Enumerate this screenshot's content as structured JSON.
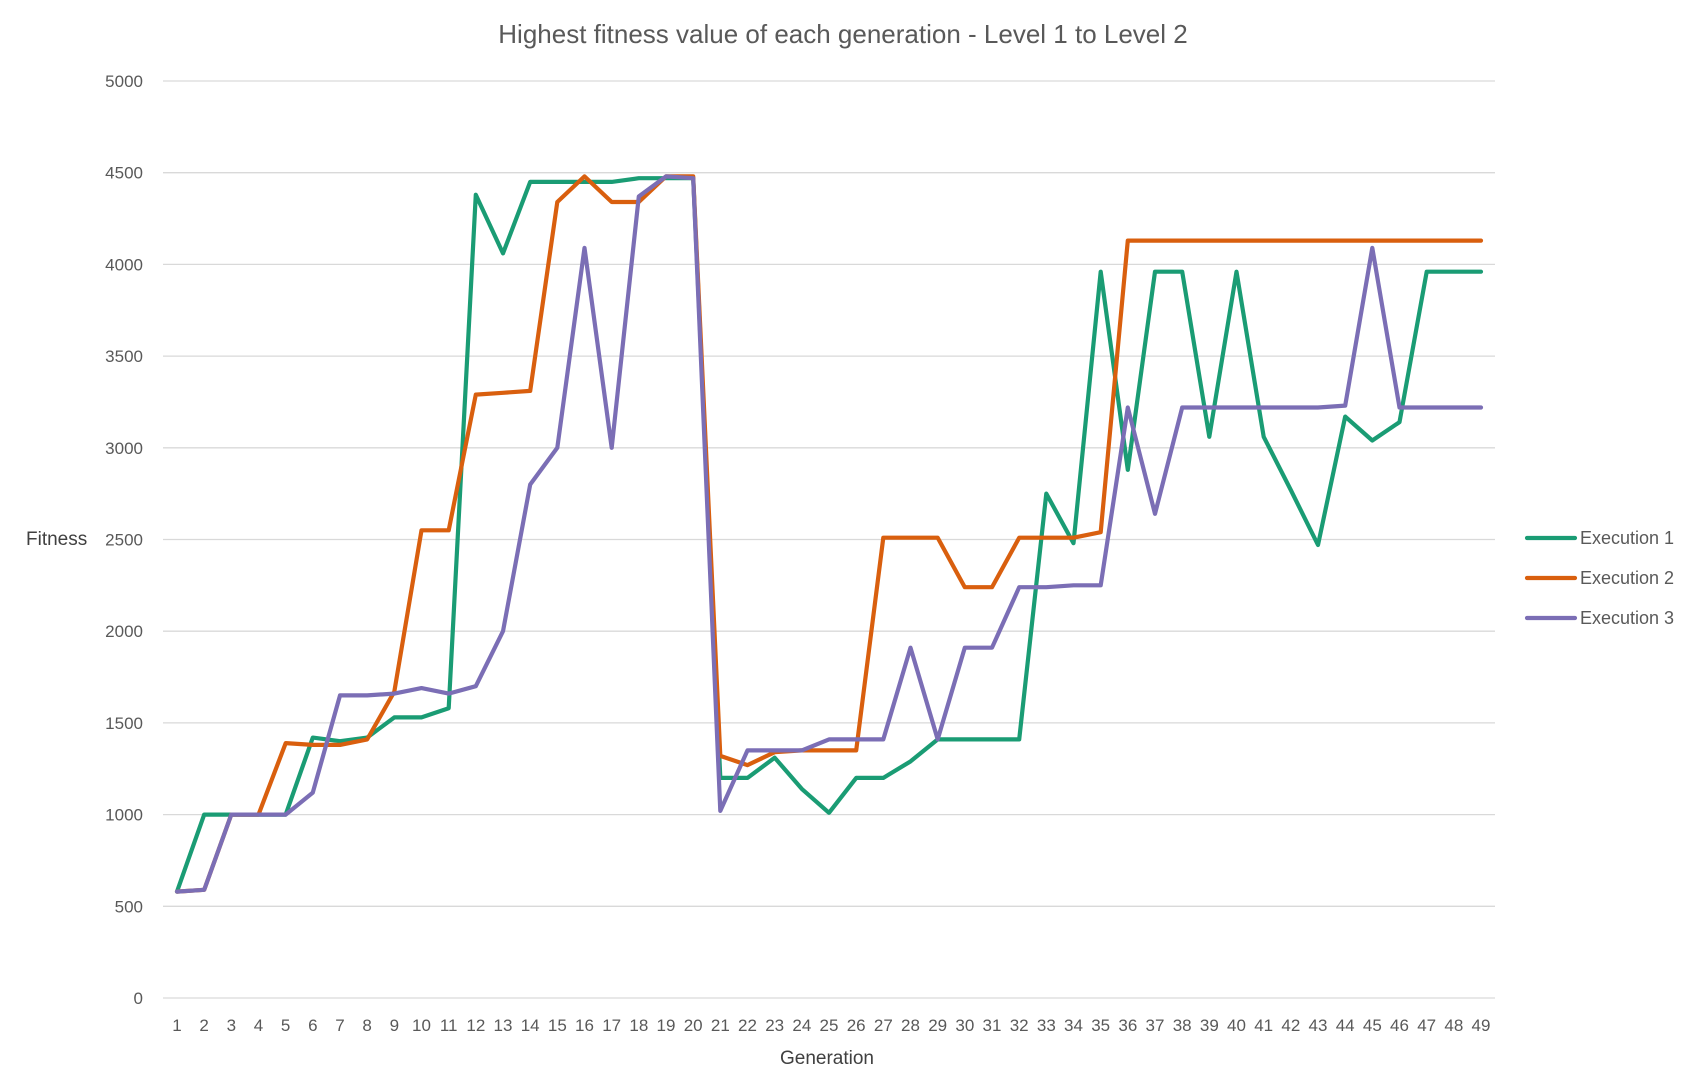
{
  "chart_data": {
    "type": "line",
    "title": "Highest fitness value of each generation - Level 1 to Level 2",
    "xlabel": "Generation",
    "ylabel": "Fitness",
    "ylim": [
      0,
      5000
    ],
    "yticks": [
      0,
      500,
      1000,
      1500,
      2000,
      2500,
      3000,
      3500,
      4000,
      4500,
      5000
    ],
    "grid": true,
    "legend_position": "right",
    "x": [
      1,
      2,
      3,
      4,
      5,
      6,
      7,
      8,
      9,
      10,
      11,
      12,
      13,
      14,
      15,
      16,
      17,
      18,
      19,
      20,
      21,
      22,
      23,
      24,
      25,
      26,
      27,
      28,
      29,
      30,
      31,
      32,
      33,
      34,
      35,
      36,
      37,
      38,
      39,
      40,
      41,
      42,
      43,
      44,
      45,
      46,
      47,
      48,
      49
    ],
    "series": [
      {
        "name": "Execution 1",
        "color": "#1a9c74",
        "values": [
          580,
          1000,
          1000,
          1000,
          1000,
          1420,
          1400,
          1420,
          1530,
          1530,
          1580,
          4380,
          4060,
          4450,
          4450,
          4450,
          4450,
          4470,
          4470,
          4470,
          1200,
          1200,
          1310,
          1140,
          1010,
          1200,
          1200,
          1290,
          1410,
          1410,
          1410,
          1410,
          2750,
          2480,
          3960,
          2880,
          3960,
          3960,
          3060,
          3960,
          3060,
          2770,
          2470,
          3170,
          3040,
          3140,
          3960,
          3960,
          3960
        ]
      },
      {
        "name": "Execution 2",
        "color": "#d95f0e",
        "values": [
          580,
          590,
          1000,
          1000,
          1390,
          1380,
          1380,
          1410,
          1670,
          2550,
          2550,
          3290,
          3300,
          3310,
          4340,
          4480,
          4340,
          4340,
          4480,
          4480,
          1320,
          1270,
          1340,
          1350,
          1350,
          1350,
          2510,
          2510,
          2510,
          2240,
          2240,
          2510,
          2510,
          2510,
          2540,
          4130,
          4130,
          4130,
          4130,
          4130,
          4130,
          4130,
          4130,
          4130,
          4130,
          4130,
          4130,
          4130,
          4130
        ]
      },
      {
        "name": "Execution 3",
        "color": "#7b6eb5",
        "values": [
          580,
          590,
          1000,
          1000,
          1000,
          1120,
          1650,
          1650,
          1660,
          1690,
          1660,
          1700,
          2000,
          2800,
          3000,
          4090,
          3000,
          4370,
          4480,
          4470,
          1020,
          1350,
          1350,
          1350,
          1410,
          1410,
          1410,
          1910,
          1410,
          1910,
          1910,
          2240,
          2240,
          2250,
          2250,
          3220,
          2640,
          3220,
          3220,
          3220,
          3220,
          3220,
          3220,
          3230,
          4090,
          3220,
          3220,
          3220,
          3220
        ]
      }
    ]
  }
}
